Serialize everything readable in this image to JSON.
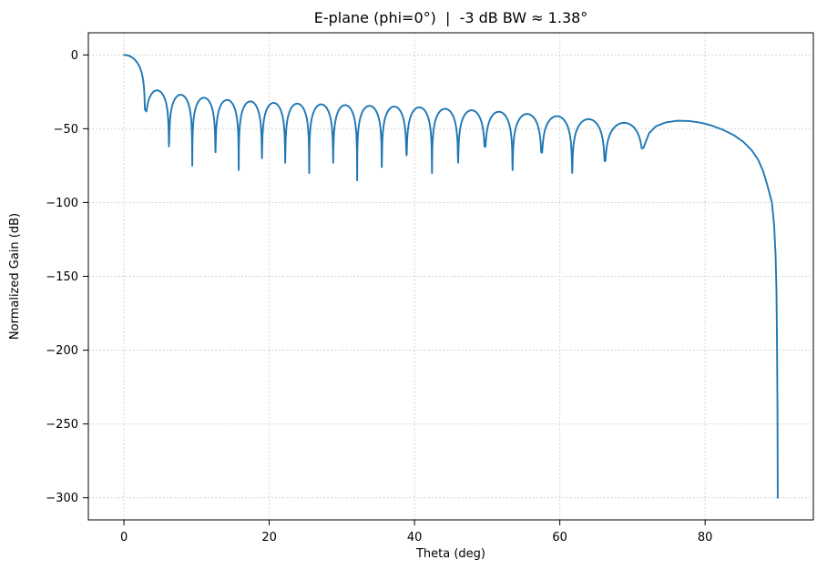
{
  "chart_data": {
    "type": "line",
    "title": "E-plane (phi=0°)  |  -3 dB BW ≈ 1.38°",
    "xlabel": "Theta (deg)",
    "ylabel": "Normalized Gain (dB)",
    "xlim": [
      -4.9,
      94.9
    ],
    "ylim": [
      -315,
      15
    ],
    "xticks": [
      0,
      20,
      40,
      60,
      80
    ],
    "xtick_labels": [
      "0",
      "20",
      "40",
      "60",
      "80"
    ],
    "yticks": [
      0,
      -50,
      -100,
      -150,
      -200,
      -250,
      -300
    ],
    "ytick_labels": [
      "0",
      "−50",
      "−100",
      "−150",
      "−200",
      "−250",
      "−300"
    ],
    "grid": true,
    "legend": "none",
    "line_color": "#1f77b4",
    "main_lobe": {
      "theta_deg": 0,
      "gain_db": 0,
      "hpbw_deg": 1.38
    },
    "first_sidelobe_db": -24,
    "series": [
      {
        "name": "E-plane normalized gain",
        "color": "#1f77b4",
        "model": {
          "main_lobe_peak_db": 0,
          "nulls_deg": [
            2.9,
            6.2,
            9.4,
            12.6,
            15.8,
            19.0,
            22.2,
            25.5,
            28.8,
            32.1,
            35.5,
            38.9,
            42.4,
            46.0,
            49.7,
            53.5,
            57.5,
            61.7,
            66.2,
            71.5
          ],
          "sidelobe_peaks_db": [
            -24,
            -27,
            -29,
            -30.5,
            -31.5,
            -32.5,
            -33,
            -33.5,
            -34,
            -34.5,
            -35,
            -35.5,
            -36.5,
            -37.5,
            -38.5,
            -40,
            -41.5,
            -43.5,
            -46
          ],
          "null_depths_db": [
            -37,
            -62,
            -75,
            -66,
            -78,
            -70,
            -73,
            -80,
            -73,
            -85,
            -76,
            -68,
            -80,
            -73,
            -62,
            -78,
            -66,
            -80,
            -72,
            -63
          ],
          "tail_deg_db": [
            [
              71.5,
              -63
            ],
            [
              72.3,
              -53
            ],
            [
              73.2,
              -48.5
            ],
            [
              74.5,
              -45.8
            ],
            [
              76.2,
              -44.6
            ],
            [
              77.8,
              -44.8
            ],
            [
              79.5,
              -46
            ],
            [
              81.0,
              -48
            ],
            [
              82.5,
              -50.8
            ],
            [
              84.0,
              -54.5
            ],
            [
              85.3,
              -59
            ],
            [
              86.4,
              -64.5
            ],
            [
              87.3,
              -71
            ],
            [
              88.0,
              -79
            ],
            [
              88.6,
              -89
            ],
            [
              89.2,
              -100
            ],
            [
              89.5,
              -115
            ],
            [
              89.7,
              -135
            ],
            [
              89.82,
              -160
            ],
            [
              89.9,
              -195
            ],
            [
              89.96,
              -240
            ],
            [
              90.0,
              -300
            ]
          ]
        }
      }
    ]
  },
  "layout_note": "single matplotlib-style line chart of antenna E-plane cut"
}
